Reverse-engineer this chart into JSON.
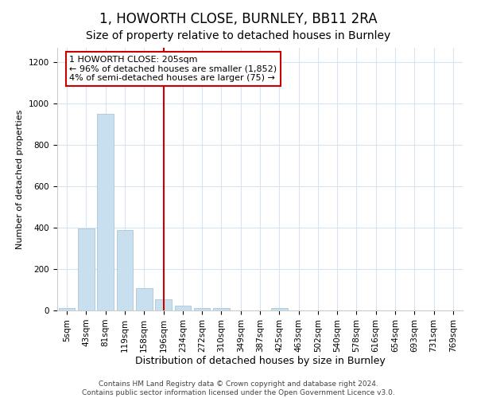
{
  "title": "1, HOWORTH CLOSE, BURNLEY, BB11 2RA",
  "subtitle": "Size of property relative to detached houses in Burnley",
  "xlabel": "Distribution of detached houses by size in Burnley",
  "ylabel": "Number of detached properties",
  "bar_color": "#c8dff0",
  "bar_edge_color": "#a0bfd0",
  "vline_color": "#cc0000",
  "annotation_text": "1 HOWORTH CLOSE: 205sqm\n← 96% of detached houses are smaller (1,852)\n4% of semi-detached houses are larger (75) →",
  "categories": [
    "5sqm",
    "43sqm",
    "81sqm",
    "119sqm",
    "158sqm",
    "196sqm",
    "234sqm",
    "272sqm",
    "310sqm",
    "349sqm",
    "387sqm",
    "425sqm",
    "463sqm",
    "502sqm",
    "540sqm",
    "578sqm",
    "616sqm",
    "654sqm",
    "693sqm",
    "731sqm",
    "769sqm"
  ],
  "bar_heights": [
    10,
    395,
    950,
    390,
    108,
    52,
    22,
    10,
    10,
    0,
    0,
    12,
    0,
    0,
    0,
    0,
    0,
    0,
    0,
    0,
    0
  ],
  "vline_idx": 5,
  "ylim": [
    0,
    1270
  ],
  "yticks": [
    0,
    200,
    400,
    600,
    800,
    1000,
    1200
  ],
  "footer_line1": "Contains HM Land Registry data © Crown copyright and database right 2024.",
  "footer_line2": "Contains public sector information licensed under the Open Government Licence v3.0.",
  "bg_color": "#ffffff",
  "plot_bg_color": "#ffffff",
  "grid_color": "#d8e4f0",
  "title_fontsize": 12,
  "subtitle_fontsize": 10,
  "xlabel_fontsize": 9,
  "ylabel_fontsize": 8,
  "tick_fontsize": 7.5,
  "annotation_fontsize": 8,
  "footer_fontsize": 6.5
}
